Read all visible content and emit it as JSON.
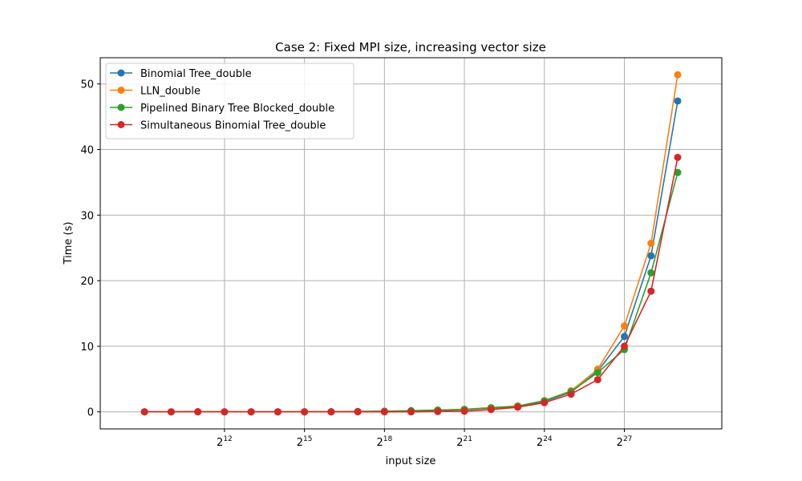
{
  "chart_data": {
    "type": "line",
    "title": "Case 2: Fixed MPI size, increasing vector size",
    "xlabel": "input size",
    "ylabel": "Time (s)",
    "x_scale": "log2",
    "x": [
      512,
      1024,
      2048,
      4096,
      8192,
      16384,
      32768,
      65536,
      131072,
      262144,
      524288,
      1048576,
      2097152,
      4194304,
      8388608,
      16777216,
      33554432,
      67108864,
      134217728,
      268435456,
      536870912
    ],
    "xticks": [
      {
        "value": 4096,
        "base": "2",
        "exp": "12"
      },
      {
        "value": 32768,
        "base": "2",
        "exp": "15"
      },
      {
        "value": 262144,
        "base": "2",
        "exp": "18"
      },
      {
        "value": 2097152,
        "base": "2",
        "exp": "21"
      },
      {
        "value": 16777216,
        "base": "2",
        "exp": "24"
      },
      {
        "value": 134217728,
        "base": "2",
        "exp": "27"
      }
    ],
    "xlim": [
      162,
      1690000000
    ],
    "ylim": [
      -2.6,
      54
    ],
    "yticks": [
      0,
      10,
      20,
      30,
      40,
      50
    ],
    "grid": true,
    "legend_position": "top-left",
    "series": [
      {
        "name": "Binomial Tree_double",
        "color": "#1f77b4",
        "values": [
          0.0,
          0.0,
          0.01,
          0.0,
          0.0,
          0.0,
          0.0,
          0.01,
          0.03,
          0.06,
          0.12,
          0.2,
          0.35,
          0.6,
          0.8,
          1.6,
          3.0,
          6.2,
          11.5,
          23.8,
          47.4
        ]
      },
      {
        "name": "LLN_double",
        "color": "#ff7f0e",
        "values": [
          0.0,
          0.0,
          0.01,
          0.0,
          0.0,
          0.0,
          0.0,
          0.01,
          0.04,
          0.08,
          0.15,
          0.25,
          0.4,
          0.65,
          0.9,
          1.7,
          3.2,
          6.5,
          13.1,
          25.7,
          51.4
        ]
      },
      {
        "name": "Pipelined Binary Tree Blocked_double",
        "color": "#2ca02c",
        "values": [
          0.0,
          0.0,
          0.01,
          0.0,
          0.0,
          0.0,
          0.0,
          0.02,
          0.06,
          0.1,
          0.18,
          0.28,
          0.35,
          0.6,
          0.85,
          1.7,
          3.1,
          6.0,
          9.5,
          21.2,
          36.5
        ]
      },
      {
        "name": "Simultaneous Binomial Tree_double",
        "color": "#d62728",
        "values": [
          0.0,
          0.0,
          0.01,
          0.0,
          0.0,
          0.0,
          0.0,
          0.0,
          0.0,
          0.0,
          0.0,
          0.05,
          0.1,
          0.35,
          0.7,
          1.4,
          2.7,
          4.9,
          10.0,
          18.4,
          38.8
        ]
      }
    ]
  }
}
